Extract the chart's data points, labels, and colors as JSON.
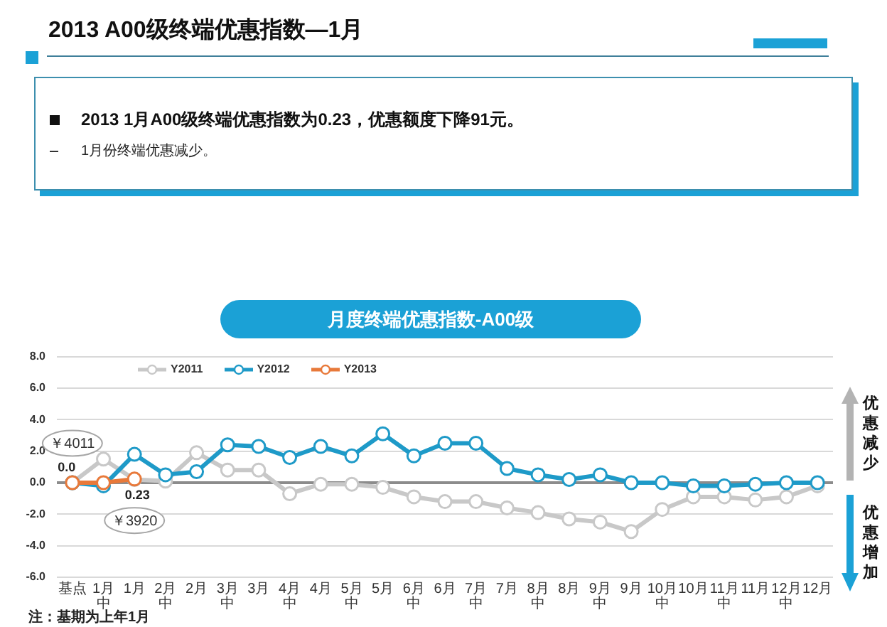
{
  "chart_data": {
    "type": "line",
    "title": "2013 A00级终端优惠指数—1月",
    "subtitle": "月度终端优惠指数-A00级",
    "annotations": [
      "2013 1月A00级终端优惠指数为0.23，优惠额度下降91元。",
      "1月份终端优惠减少。",
      "优惠减少",
      "优惠增加",
      "注：基期为上年1月",
      {
        "text": "￥4011",
        "x": "基点",
        "y": 2.5
      },
      {
        "text": "￥3920",
        "x": "1月",
        "y": -2.4
      }
    ],
    "categories": [
      "基点",
      "1月中",
      "1月",
      "2月中",
      "2月",
      "3月中",
      "3月",
      "4月中",
      "4月",
      "5月中",
      "5月",
      "6月中",
      "6月",
      "7月中",
      "7月",
      "8月中",
      "8月",
      "9月中",
      "9月",
      "10月中",
      "10月",
      "11月中",
      "11月",
      "12月中",
      "12月"
    ],
    "series": [
      {
        "name": "Y2011",
        "color": "#c8c8c8",
        "values": [
          0,
          1.5,
          0.2,
          0.1,
          1.9,
          0.8,
          0.8,
          -0.7,
          -0.1,
          -0.1,
          -0.3,
          -0.9,
          -1.2,
          -1.2,
          -1.6,
          -1.9,
          -2.3,
          -2.5,
          -3.1,
          -1.7,
          -0.9,
          -0.9,
          -1.1,
          -0.9,
          -0.2
        ]
      },
      {
        "name": "Y2012",
        "color": "#1e9ac8",
        "values": [
          0,
          -0.2,
          1.8,
          0.5,
          0.7,
          2.4,
          2.3,
          1.6,
          2.3,
          1.7,
          3.1,
          1.7,
          2.5,
          2.5,
          0.9,
          0.5,
          0.2,
          0.5,
          0.0,
          0.0,
          -0.2,
          -0.2,
          -0.1,
          0.0,
          0.0
        ]
      },
      {
        "name": "Y2013",
        "color": "#e8793a",
        "values": [
          0,
          0,
          0.23,
          null,
          null,
          null,
          null,
          null,
          null,
          null,
          null,
          null,
          null,
          null,
          null,
          null,
          null,
          null,
          null,
          null,
          null,
          null,
          null,
          null,
          null
        ],
        "value_labels": [
          "0.0",
          null,
          "0.23",
          null,
          null,
          null,
          null,
          null,
          null,
          null,
          null,
          null,
          null,
          null,
          null,
          null,
          null,
          null,
          null,
          null,
          null,
          null,
          null,
          null,
          null
        ]
      }
    ],
    "ylim": [
      -6,
      8
    ],
    "yticks": [
      {
        "value": 8,
        "label": "8.0"
      },
      {
        "value": 6,
        "label": "6.0"
      },
      {
        "value": 4,
        "label": "4.0"
      },
      {
        "value": 2,
        "label": "2.0"
      },
      {
        "value": 0,
        "label": "0.0"
      },
      {
        "value": -2,
        "label": "-2.0"
      },
      {
        "value": -4,
        "label": "-4.0"
      },
      {
        "value": -6,
        "label": "-6.0"
      }
    ],
    "grid": "y",
    "legend": "top left",
    "marker": "circle"
  }
}
